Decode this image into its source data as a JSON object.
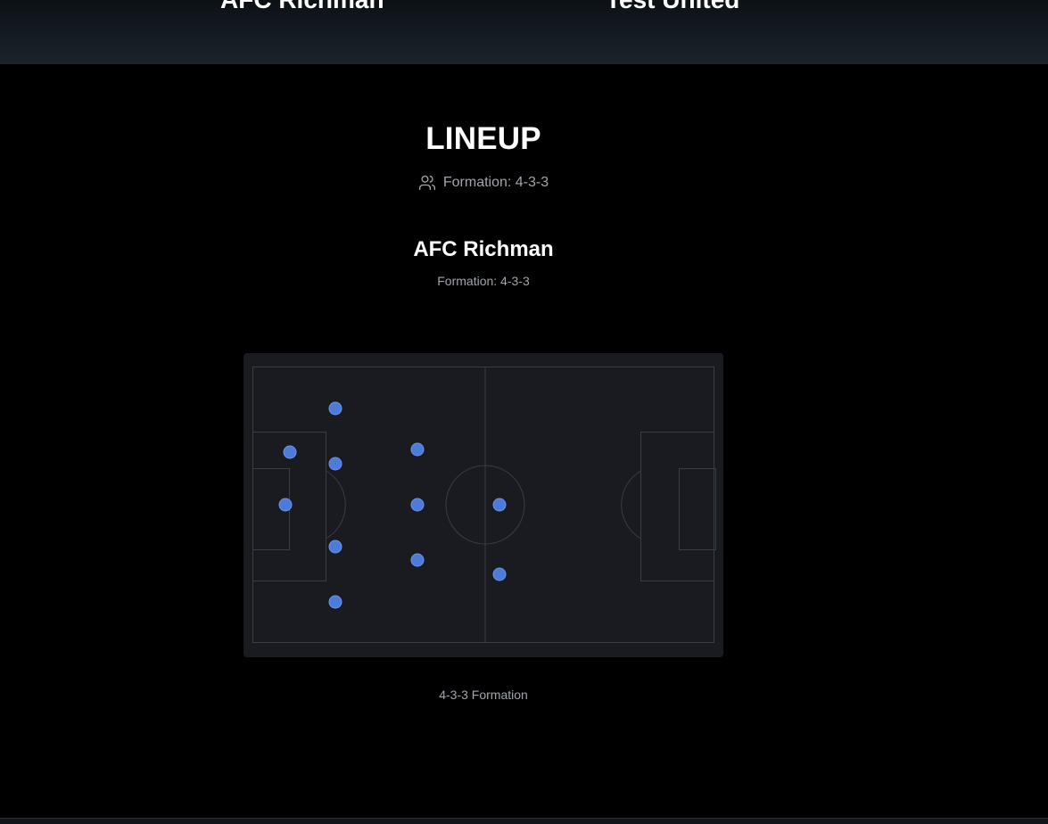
{
  "banner": {
    "home_team": "AFC Richman",
    "away_team": "Test United"
  },
  "lineup": {
    "title": "LINEUP",
    "formation_label": "Formation: 4-3-3",
    "icon": "users-icon"
  },
  "team": {
    "name": "AFC Richman",
    "formation_label": "Formation: 4-3-3"
  },
  "pitch": {
    "caption": "4-3-3 Formation",
    "player_color": "#4c7bd9",
    "line_color": "#3a3d45",
    "background_color": "#1a1b20"
  }
}
